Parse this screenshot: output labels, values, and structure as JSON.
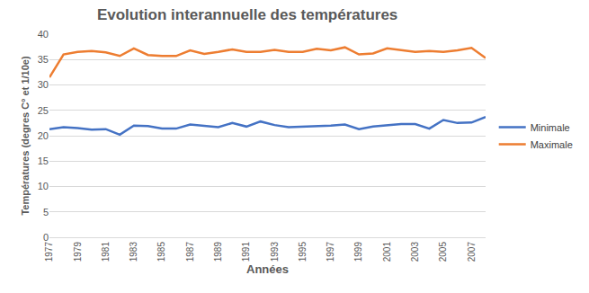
{
  "chart_data": {
    "type": "line",
    "title": "Evolution interannuelle des températures",
    "x_label": "Années",
    "y_label": "Températures (degres C° et 1/10e)",
    "x": [
      1977,
      1978,
      1979,
      1980,
      1981,
      1982,
      1983,
      1984,
      1985,
      1986,
      1987,
      1988,
      1989,
      1990,
      1991,
      1992,
      1993,
      1994,
      1995,
      1996,
      1997,
      1998,
      1999,
      2000,
      2001,
      2002,
      2003,
      2004,
      2005,
      2006,
      2007,
      2008
    ],
    "series": [
      {
        "name": "Minimale",
        "color": "#4472c4",
        "values": [
          21.3,
          21.7,
          21.5,
          21.2,
          21.3,
          20.2,
          22.0,
          21.9,
          21.4,
          21.4,
          22.2,
          22.0,
          21.7,
          22.5,
          21.8,
          22.8,
          22.1,
          21.7,
          21.8,
          21.8,
          22.0,
          22.2,
          21.3,
          21.8,
          22.0,
          22.3,
          22.3,
          21.4,
          23.1,
          22.5,
          22.6,
          23.7
        ]
      },
      {
        "name": "Maximale",
        "color": "#ed7d31",
        "values": [
          31.5,
          36.0,
          36.5,
          36.7,
          36.4,
          35.7,
          37.2,
          35.9,
          35.7,
          35.7,
          36.8,
          36.1,
          36.5,
          37.0,
          36.5,
          36.5,
          36.9,
          36.5,
          36.5,
          37.1,
          36.8,
          37.4,
          36.0,
          36.2,
          37.2,
          36.9,
          36.5,
          36.7,
          36.5,
          36.8,
          37.3,
          35.3
        ]
      }
    ],
    "xlim": [
      1977,
      2008
    ],
    "xticks": [
      1977,
      1979,
      1981,
      1983,
      1985,
      1987,
      1989,
      1991,
      1993,
      1995,
      1997,
      1999,
      2001,
      2003,
      2005,
      2007
    ],
    "ylim": [
      0,
      40
    ],
    "yticks": [
      0,
      5,
      10,
      15,
      20,
      25,
      30,
      35,
      40
    ],
    "grid": true,
    "legend": "right"
  }
}
